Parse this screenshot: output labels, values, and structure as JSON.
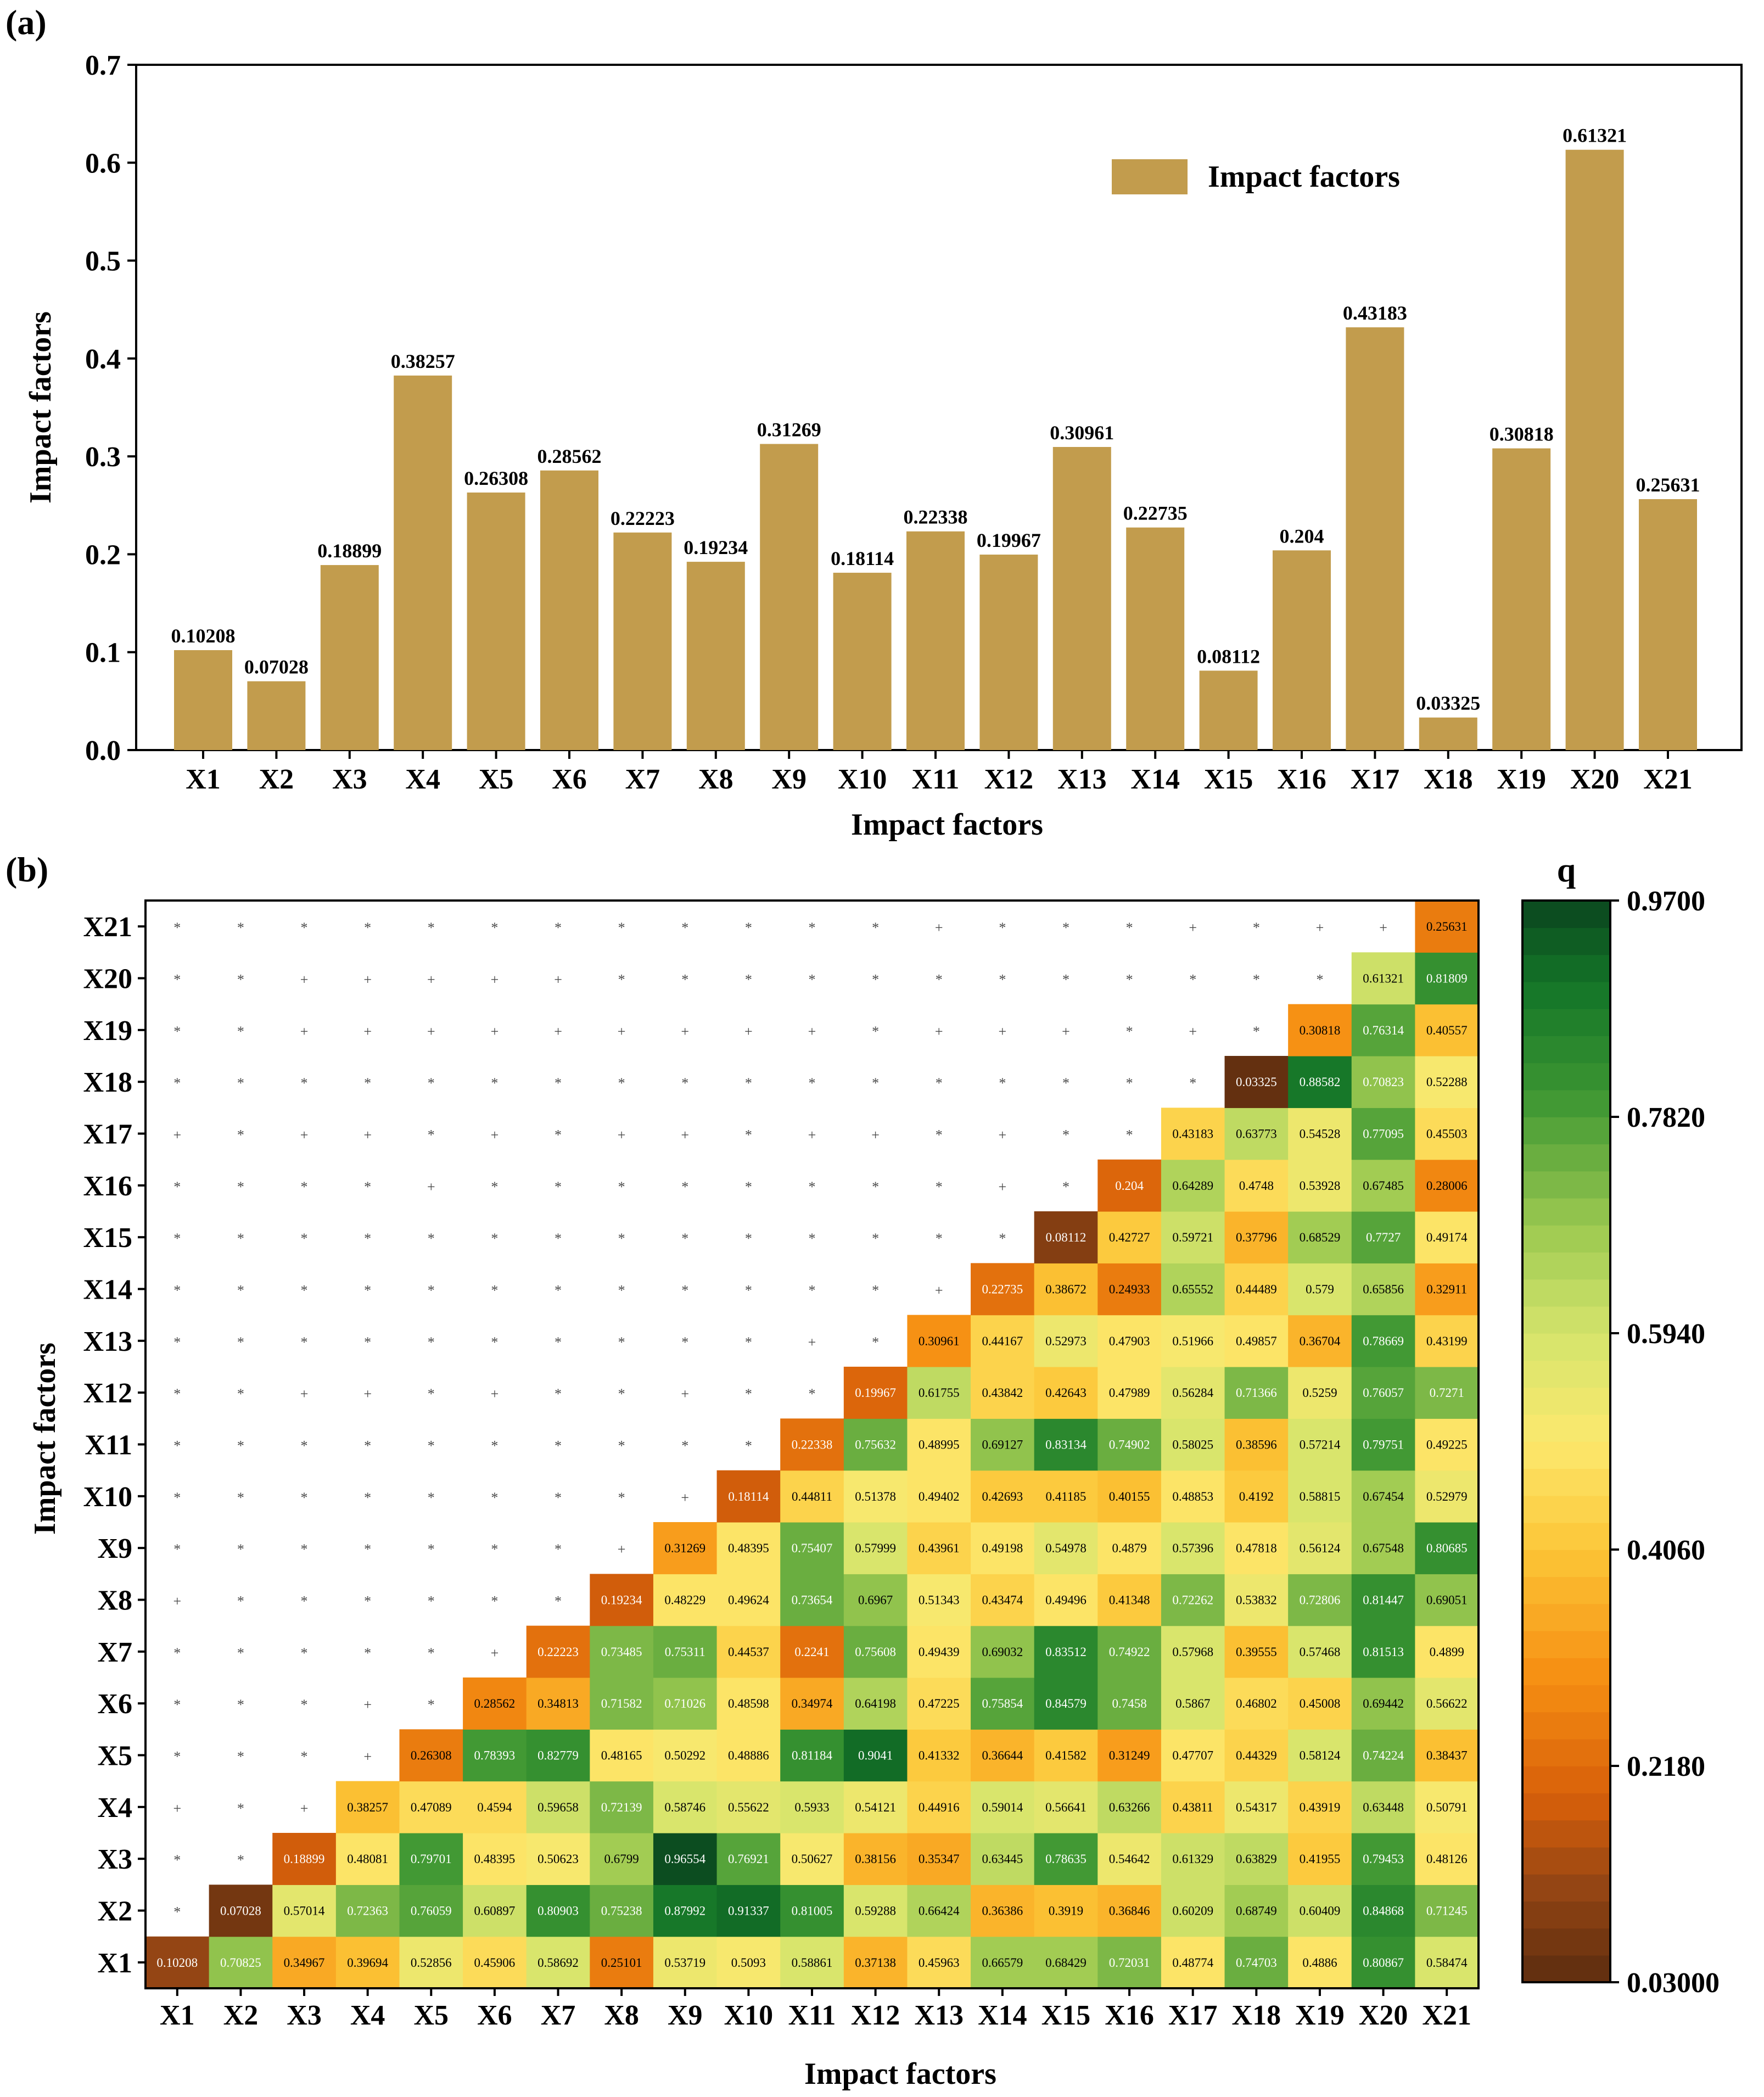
{
  "chart_data": [
    {
      "type": "bar",
      "panel_label": "(a)",
      "categories": [
        "X1",
        "X2",
        "X3",
        "X4",
        "X5",
        "X6",
        "X7",
        "X8",
        "X9",
        "X10",
        "X11",
        "X12",
        "X13",
        "X14",
        "X15",
        "X16",
        "X17",
        "X18",
        "X19",
        "X20",
        "X21"
      ],
      "values": [
        0.10208,
        0.07028,
        0.18899,
        0.38257,
        0.26308,
        0.28562,
        0.22223,
        0.19234,
        0.31269,
        0.18114,
        0.22338,
        0.19967,
        0.30961,
        0.22735,
        0.08112,
        0.204,
        0.43183,
        0.03325,
        0.30818,
        0.61321,
        0.25631
      ],
      "value_labels": [
        "0.10208",
        "0.07028",
        "0.18899",
        "0.38257",
        "0.26308",
        "0.28562",
        "0.22223",
        "0.19234",
        "0.31269",
        "0.18114",
        "0.22338",
        "0.19967",
        "0.30961",
        "0.22735",
        "0.08112",
        "0.204",
        "0.43183",
        "0.03325",
        "0.30818",
        "0.61321",
        "0.25631"
      ],
      "xlabel": "Impact factors",
      "ylabel": "Impact factors",
      "legend": "Impact factors",
      "legend_position": "top-right",
      "ylim": [
        0,
        0.7
      ],
      "yticks": [
        "0.0",
        "0.1",
        "0.2",
        "0.3",
        "0.4",
        "0.5",
        "0.6",
        "0.7"
      ],
      "bar_color": "#c29c4d"
    },
    {
      "type": "heatmap",
      "panel_label": "(b)",
      "factors": [
        "X1",
        "X2",
        "X3",
        "X4",
        "X5",
        "X6",
        "X7",
        "X8",
        "X9",
        "X10",
        "X11",
        "X12",
        "X13",
        "X14",
        "X15",
        "X16",
        "X17",
        "X18",
        "X19",
        "X20",
        "X21"
      ],
      "xlabel": "Impact factors",
      "ylabel": "Impact factors",
      "colorbar_title": "q",
      "colorbar_range": [
        0.03,
        0.97
      ],
      "colorbar_ticks": [
        "0.9700",
        "0.7820",
        "0.5940",
        "0.4060",
        "0.2180",
        "0.03000"
      ],
      "rows": [
        [
          "0.10208",
          "0.70825",
          "0.34967",
          "0.39694",
          "0.52856",
          "0.45906",
          "0.58692",
          "0.25101",
          "0.53719",
          "0.5093",
          "0.58861",
          "0.37138",
          "0.45963",
          "0.66579",
          "0.68429",
          "0.72031",
          "0.48774",
          "0.74703",
          "0.4886",
          "0.80867",
          "0.58474"
        ],
        [
          "0.07028",
          "0.57014",
          "0.72363",
          "0.76059",
          "0.60897",
          "0.80903",
          "0.75238",
          "0.87992",
          "0.91337",
          "0.81005",
          "0.59288",
          "0.66424",
          "0.36386",
          "0.3919",
          "0.36846",
          "0.60209",
          "0.68749",
          "0.60409",
          "0.84868",
          "0.71245"
        ],
        [
          "0.18899",
          "0.48081",
          "0.79701",
          "0.48395",
          "0.50623",
          "0.6799",
          "0.96554",
          "0.76921",
          "0.50627",
          "0.38156",
          "0.35347",
          "0.63445",
          "0.78635",
          "0.54642",
          "0.61329",
          "0.63829",
          "0.41955",
          "0.79453",
          "0.48126"
        ],
        [
          "0.38257",
          "0.47089",
          "0.4594",
          "0.59658",
          "0.72139",
          "0.58746",
          "0.55622",
          "0.5933",
          "0.54121",
          "0.44916",
          "0.59014",
          "0.56641",
          "0.63266",
          "0.43811",
          "0.54317",
          "0.43919",
          "0.63448",
          "0.50791"
        ],
        [
          "0.26308",
          "0.78393",
          "0.82779",
          "0.48165",
          "0.50292",
          "0.48886",
          "0.81184",
          "0.9041",
          "0.41332",
          "0.36644",
          "0.41582",
          "0.31249",
          "0.47707",
          "0.44329",
          "0.58124",
          "0.74224",
          "0.38437"
        ],
        [
          "0.28562",
          "0.34813",
          "0.71582",
          "0.71026",
          "0.48598",
          "0.34974",
          "0.64198",
          "0.47225",
          "0.75854",
          "0.84579",
          "0.7458",
          "0.5867",
          "0.46802",
          "0.45008",
          "0.69442",
          "0.56622"
        ],
        [
          "0.22223",
          "0.73485",
          "0.75311",
          "0.44537",
          "0.2241",
          "0.75608",
          "0.49439",
          "0.69032",
          "0.83512",
          "0.74922",
          "0.57968",
          "0.39555",
          "0.57468",
          "0.81513",
          "0.4899"
        ],
        [
          "0.19234",
          "0.48229",
          "0.49624",
          "0.73654",
          "0.6967",
          "0.51343",
          "0.43474",
          "0.49496",
          "0.41348",
          "0.72262",
          "0.53832",
          "0.72806",
          "0.81447",
          "0.69051"
        ],
        [
          "0.31269",
          "0.48395",
          "0.75407",
          "0.57999",
          "0.43961",
          "0.49198",
          "0.54978",
          "0.4879",
          "0.57396",
          "0.47818",
          "0.56124",
          "0.67548",
          "0.80685"
        ],
        [
          "0.18114",
          "0.44811",
          "0.51378",
          "0.49402",
          "0.42693",
          "0.41185",
          "0.40155",
          "0.48853",
          "0.4192",
          "0.58815",
          "0.67454",
          "0.52979"
        ],
        [
          "0.22338",
          "0.75632",
          "0.48995",
          "0.69127",
          "0.83134",
          "0.74902",
          "0.58025",
          "0.38596",
          "0.57214",
          "0.79751",
          "0.49225"
        ],
        [
          "0.19967",
          "0.61755",
          "0.43842",
          "0.42643",
          "0.47989",
          "0.56284",
          "0.71366",
          "0.5259",
          "0.76057",
          "0.7271"
        ],
        [
          "0.30961",
          "0.44167",
          "0.52973",
          "0.47903",
          "0.51966",
          "0.49857",
          "0.36704",
          "0.78669",
          "0.43199"
        ],
        [
          "0.22735",
          "0.38672",
          "0.24933",
          "0.65552",
          "0.44489",
          "0.579",
          "0.65856",
          "0.32911"
        ],
        [
          "0.08112",
          "0.42727",
          "0.59721",
          "0.37796",
          "0.68529",
          "0.7727",
          "0.49174"
        ],
        [
          "0.204",
          "0.64289",
          "0.4748",
          "0.53928",
          "0.67485",
          "0.28006"
        ],
        [
          "0.43183",
          "0.63773",
          "0.54528",
          "0.77095",
          "0.45503"
        ],
        [
          "0.03325",
          "0.88582",
          "0.70823",
          "0.52288"
        ],
        [
          "0.30818",
          "0.76314",
          "0.40557"
        ],
        [
          "0.61321",
          "0.81809"
        ],
        [
          "0.25631"
        ]
      ],
      "lower_marks": [
        [],
        [
          "*"
        ],
        [
          "*",
          "*"
        ],
        [
          "+",
          "*",
          "+"
        ],
        [
          "*",
          "*",
          "*",
          "+"
        ],
        [
          "*",
          "*",
          "*",
          "+",
          "*"
        ],
        [
          "*",
          "*",
          "*",
          "*",
          "*",
          "+"
        ],
        [
          "+",
          "*",
          "*",
          "*",
          "*",
          "*",
          "*"
        ],
        [
          "*",
          "*",
          "*",
          "*",
          "*",
          "*",
          "*",
          "+"
        ],
        [
          "*",
          "*",
          "*",
          "*",
          "*",
          "*",
          "*",
          "*",
          "+"
        ],
        [
          "*",
          "*",
          "*",
          "*",
          "*",
          "*",
          "*",
          "*",
          "*",
          "*"
        ],
        [
          "*",
          "*",
          "+",
          "+",
          "*",
          "+",
          "*",
          "*",
          "+",
          "*",
          "*"
        ],
        [
          "*",
          "*",
          "*",
          "*",
          "*",
          "*",
          "*",
          "*",
          "*",
          "*",
          "+",
          "*"
        ],
        [
          "*",
          "*",
          "*",
          "*",
          "*",
          "*",
          "*",
          "*",
          "*",
          "*",
          "*",
          "*",
          "+"
        ],
        [
          "*",
          "*",
          "*",
          "*",
          "*",
          "*",
          "*",
          "*",
          "*",
          "*",
          "*",
          "*",
          "*",
          "*"
        ],
        [
          "*",
          "*",
          "*",
          "*",
          "+",
          "*",
          "*",
          "*",
          "*",
          "*",
          "*",
          "*",
          "*",
          "+",
          "*"
        ],
        [
          "+",
          "*",
          "+",
          "+",
          "*",
          "+",
          "*",
          "+",
          "+",
          "*",
          "+",
          "+",
          "*",
          "+",
          "*",
          "*"
        ],
        [
          "*",
          "*",
          "*",
          "*",
          "*",
          "*",
          "*",
          "*",
          "*",
          "*",
          "*",
          "*",
          "*",
          "*",
          "*",
          "*",
          "*"
        ],
        [
          "*",
          "*",
          "+",
          "+",
          "+",
          "+",
          "+",
          "+",
          "+",
          "+",
          "+",
          "*",
          "+",
          "+",
          "+",
          "*",
          "+",
          "*"
        ],
        [
          "*",
          "*",
          "+",
          "+",
          "+",
          "+",
          "+",
          "*",
          "*",
          "*",
          "*",
          "*",
          "*",
          "*",
          "*",
          "*",
          "*",
          "*",
          "*"
        ],
        [
          "*",
          "*",
          "*",
          "*",
          "*",
          "*",
          "*",
          "*",
          "*",
          "*",
          "*",
          "*",
          "+",
          "*",
          "*",
          "*",
          "+",
          "*",
          "+",
          "+"
        ]
      ]
    }
  ]
}
